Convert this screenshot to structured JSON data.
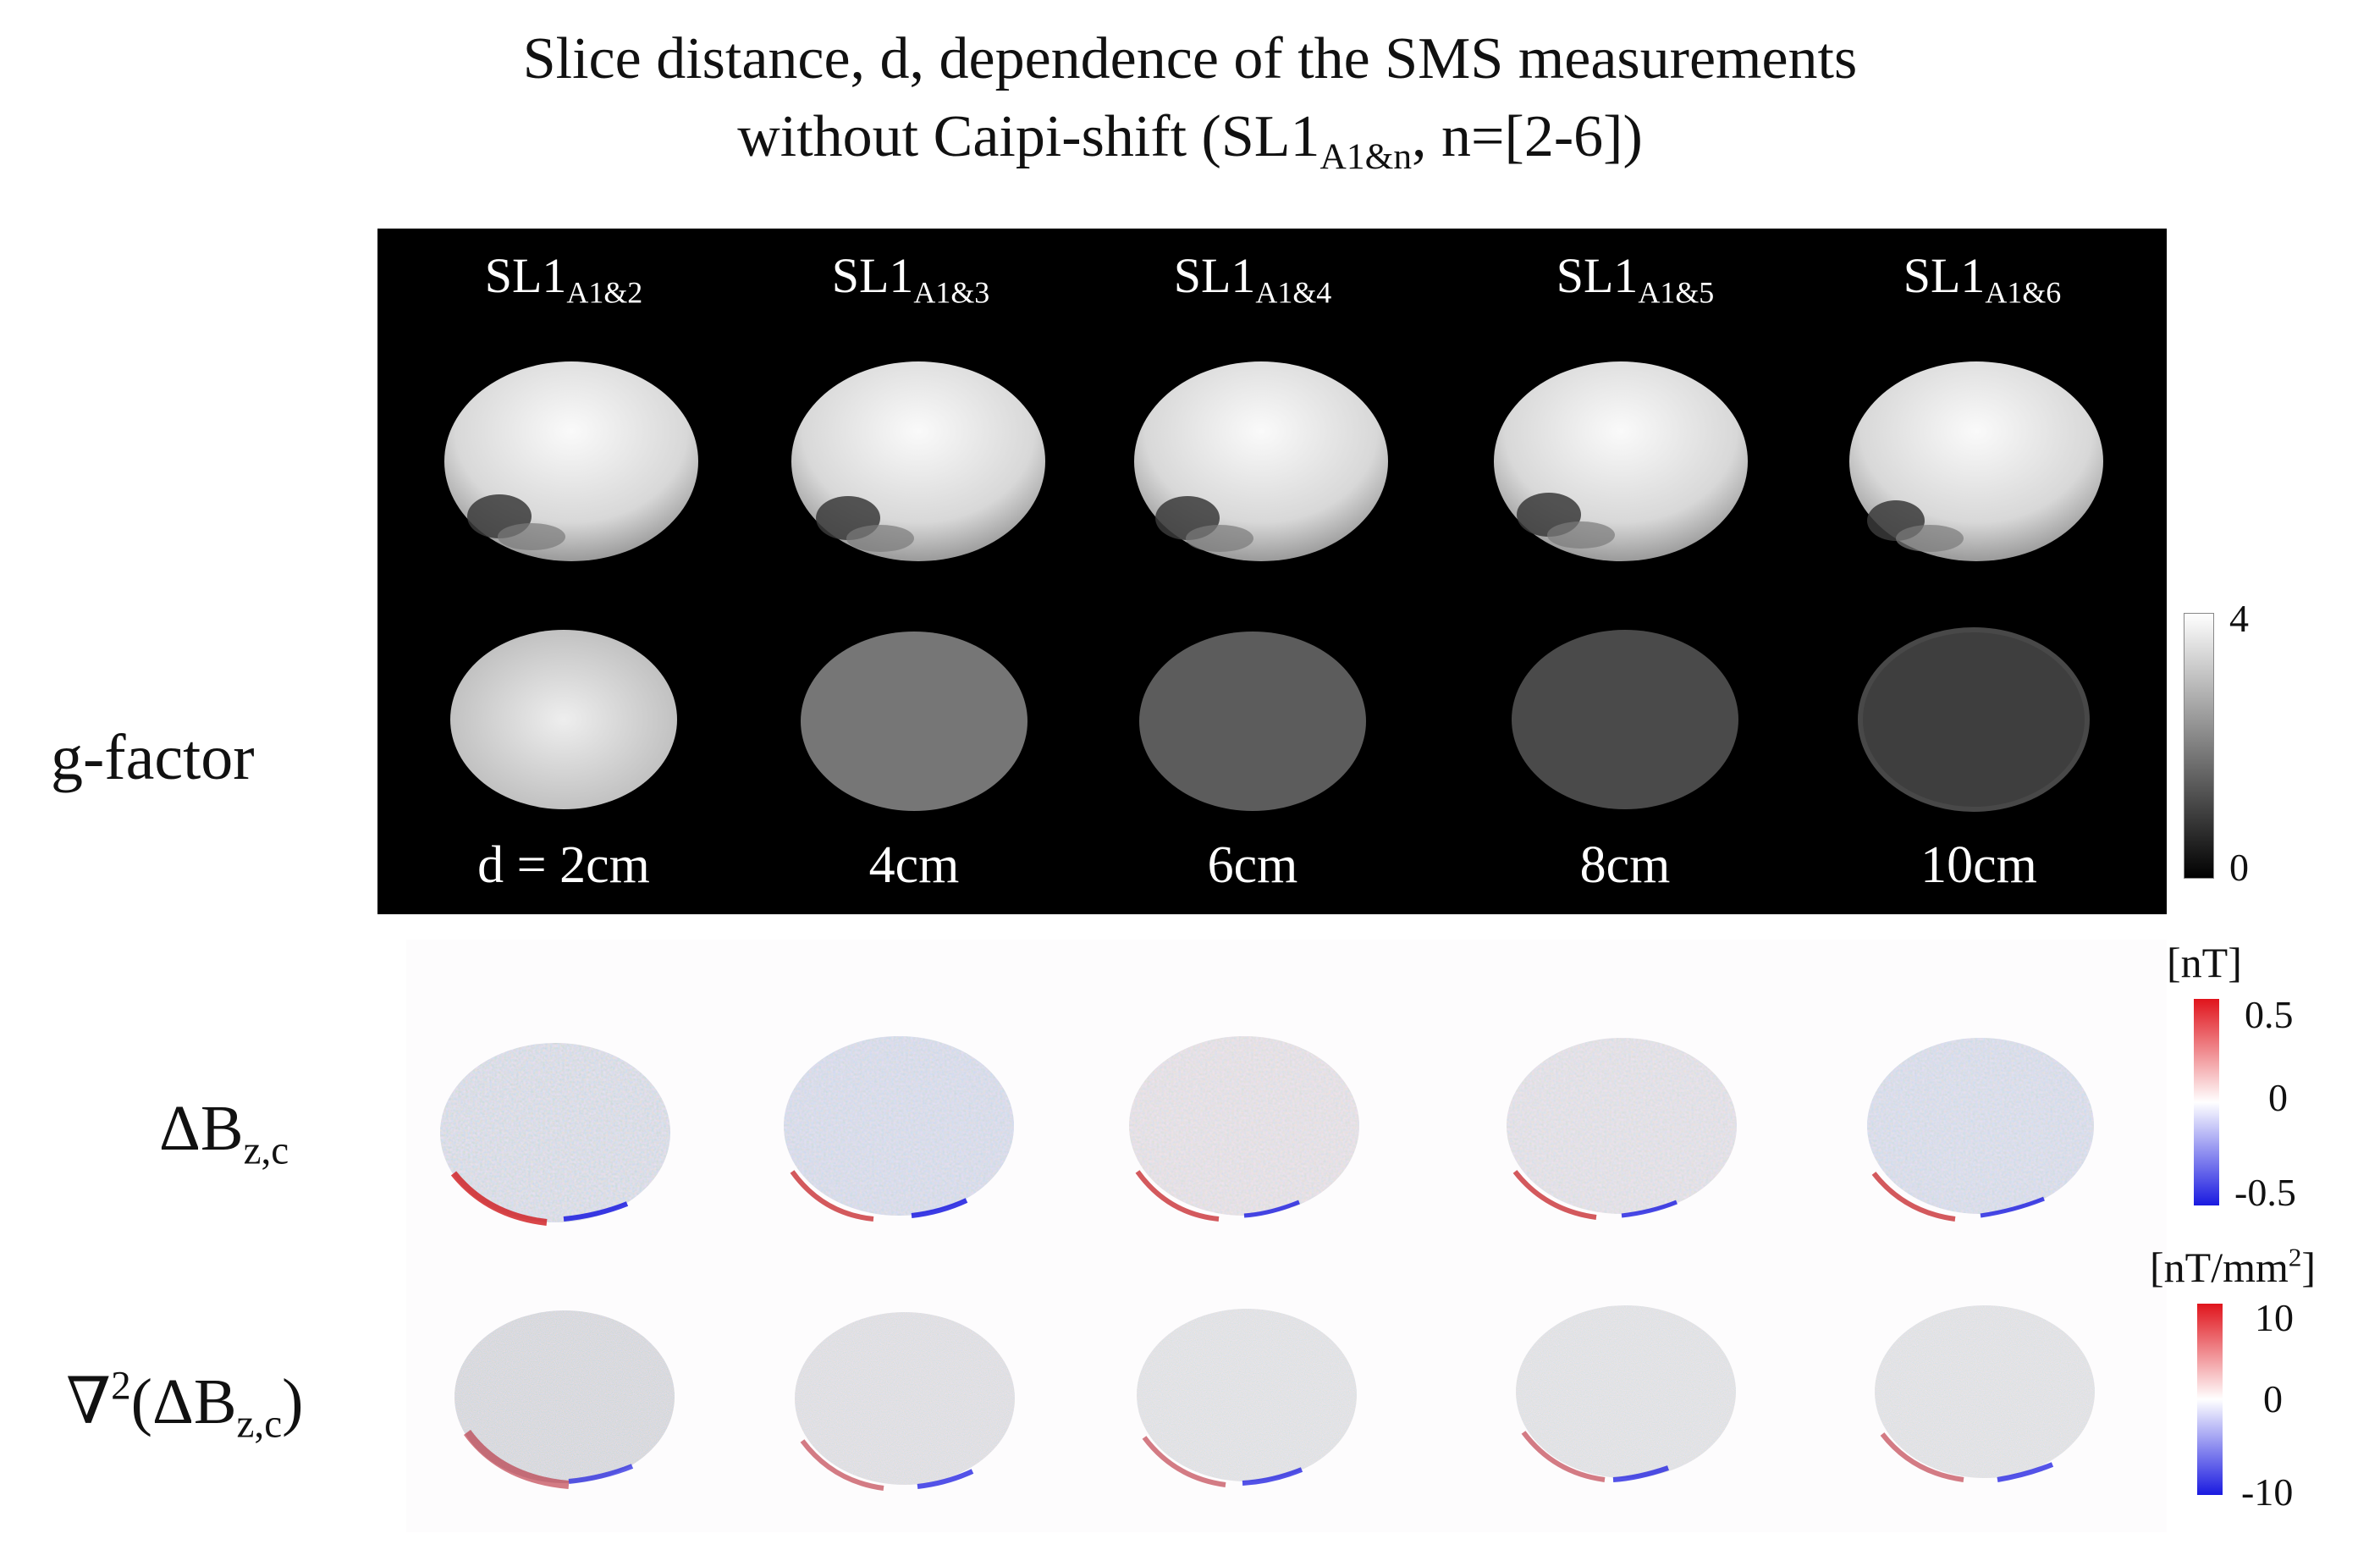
{
  "title": {
    "line1": "Slice distance, d, dependence of the SMS measurements",
    "line2_prefix": "without Caipi-shift (SL1",
    "line2_sub": "A1&n",
    "line2_suffix": ", n=[2-6])"
  },
  "columns": [
    {
      "label_main": "SL1",
      "label_sub": "A1&2",
      "distance": "d = 2cm",
      "gray": 212
    },
    {
      "label_main": "SL1",
      "label_sub": "A1&3",
      "distance": "4cm",
      "gray": 118
    },
    {
      "label_main": "SL1",
      "label_sub": "A1&4",
      "distance": "6cm",
      "gray": 92
    },
    {
      "label_main": "SL1",
      "label_sub": "A1&5",
      "distance": "8cm",
      "gray": 74
    },
    {
      "label_main": "SL1",
      "label_sub": "A1&6",
      "distance": "10cm",
      "gray": 62
    }
  ],
  "rows": {
    "gfactor": "g-factor",
    "dbz_main": "ΔB",
    "dbz_sub": "z,c",
    "lap_prefix": "∇",
    "lap_sup": "2",
    "lap_mid": "(ΔB",
    "lap_sub": "z,c",
    "lap_suffix": ")"
  },
  "colorbars": {
    "gfactor": {
      "max": "4",
      "min": "0"
    },
    "dbz": {
      "unit": "[nT]",
      "max": "0.5",
      "mid": "0",
      "min": "-0.5"
    },
    "lap": {
      "unit_prefix": "[nT/mm",
      "unit_sup": "2",
      "unit_suffix": "]",
      "max": "10",
      "mid": "0",
      "min": "-10"
    }
  },
  "colors": {
    "positive": "#e0141c",
    "negative": "#1a1ae0",
    "panel": "#000000"
  }
}
